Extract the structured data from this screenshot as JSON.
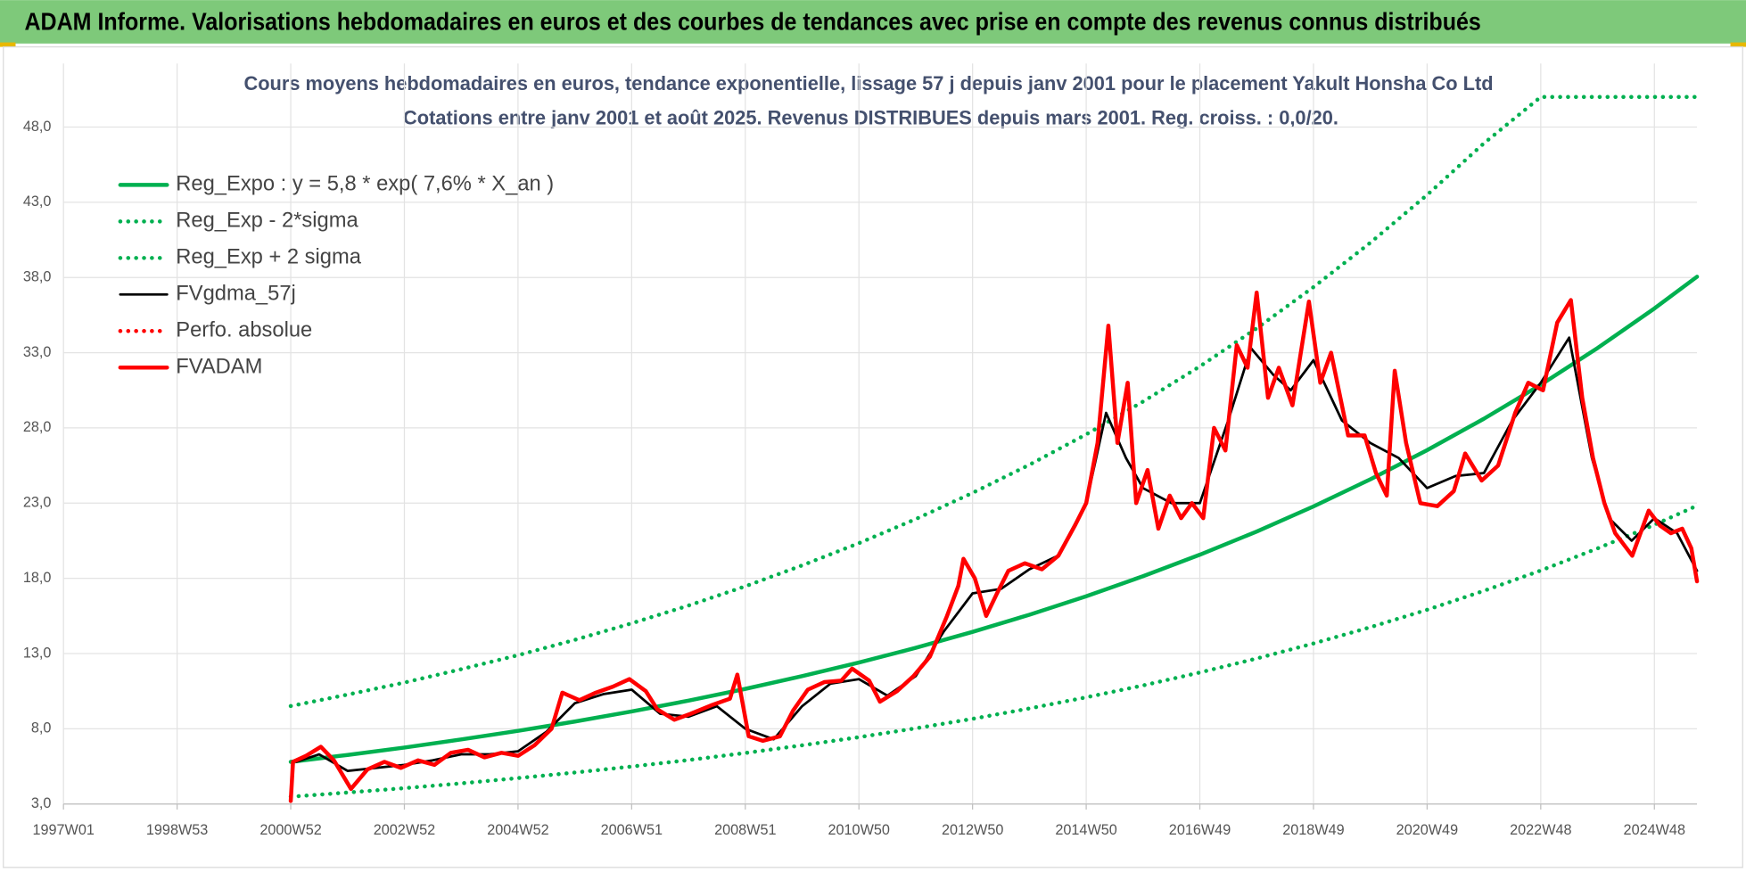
{
  "header": {
    "title": "ADAM Informe. Valorisations hebdomadaires en euros et des courbes de tendances avec prise en compte des revenus connus distribués"
  },
  "chart_data": {
    "type": "line",
    "title": "Cours moyens hebdomadaires en euros, tendance exponentielle, lissage 57 j depuis janv 2001 pour le placement Yakult Honsha Co Ltd",
    "subtitle": "Cotations entre janv 2001 et août 2025.  Revenus DISTRIBUES depuis mars 2001. Reg. croiss. : 0,0/20.",
    "xlim": [
      1997,
      2025.75
    ],
    "xticks": [
      {
        "value": 1997,
        "label": "1997W01"
      },
      {
        "value": 1999,
        "label": "1998W53"
      },
      {
        "value": 2001,
        "label": "2000W52"
      },
      {
        "value": 2003,
        "label": "2002W52"
      },
      {
        "value": 2005,
        "label": "2004W52"
      },
      {
        "value": 2007,
        "label": "2006W51"
      },
      {
        "value": 2009,
        "label": "2008W51"
      },
      {
        "value": 2011,
        "label": "2010W50"
      },
      {
        "value": 2013,
        "label": "2012W50"
      },
      {
        "value": 2015,
        "label": "2014W50"
      },
      {
        "value": 2017,
        "label": "2016W49"
      },
      {
        "value": 2019,
        "label": "2018W49"
      },
      {
        "value": 2021,
        "label": "2020W49"
      },
      {
        "value": 2023,
        "label": "2022W48"
      },
      {
        "value": 2025,
        "label": "2024W48"
      }
    ],
    "ylim": [
      3,
      50
    ],
    "yticks": [
      {
        "value": 3,
        "label": "3,0"
      },
      {
        "value": 8,
        "label": "8,0"
      },
      {
        "value": 13,
        "label": "13,0"
      },
      {
        "value": 18,
        "label": "18,0"
      },
      {
        "value": 23,
        "label": "23,0"
      },
      {
        "value": 28,
        "label": "28,0"
      },
      {
        "value": 33,
        "label": "33,0"
      },
      {
        "value": 38,
        "label": "38,0"
      },
      {
        "value": 43,
        "label": "43,0"
      },
      {
        "value": 48,
        "label": "48,0"
      }
    ],
    "grid": true,
    "legend": "upper left",
    "series": [
      {
        "name": "Reg_Expo : y = 5,8 * exp( 7,6% *  X_an )",
        "color": "#00b050",
        "style": "solid",
        "x": [
          2001,
          2002,
          2003,
          2004,
          2005,
          2006,
          2007,
          2008,
          2009,
          2010,
          2011,
          2012,
          2013,
          2014,
          2015,
          2016,
          2017,
          2018,
          2019,
          2020,
          2021,
          2022,
          2023,
          2024,
          2025,
          2025.75
        ],
        "values": [
          5.8,
          6.26,
          6.75,
          7.29,
          7.86,
          8.48,
          9.15,
          9.87,
          10.65,
          11.5,
          12.4,
          13.38,
          14.44,
          15.58,
          16.81,
          18.14,
          19.57,
          21.11,
          22.78,
          24.58,
          26.52,
          28.61,
          30.87,
          33.31,
          35.94,
          38.05
        ]
      },
      {
        "name": "Reg_Exp - 2*sigma",
        "color": "#00b050",
        "style": "dotted",
        "x": [
          2001,
          2002,
          2003,
          2004,
          2005,
          2006,
          2007,
          2008,
          2009,
          2010,
          2011,
          2012,
          2013,
          2014,
          2015,
          2016,
          2017,
          2018,
          2019,
          2020,
          2021,
          2022,
          2023,
          2024,
          2025,
          2025.75
        ],
        "values": [
          3.48,
          3.76,
          4.05,
          4.37,
          4.72,
          5.09,
          5.49,
          5.92,
          6.39,
          6.9,
          7.44,
          8.03,
          8.66,
          9.35,
          10.09,
          10.88,
          11.74,
          12.67,
          13.67,
          14.75,
          15.91,
          17.17,
          18.52,
          19.99,
          21.56,
          22.83
        ]
      },
      {
        "name": "Reg_Exp + 2 sigma",
        "color": "#00b050",
        "style": "dotted",
        "x": [
          2001,
          2002,
          2003,
          2004,
          2005,
          2006,
          2007,
          2008,
          2009,
          2010,
          2011,
          2012,
          2013,
          2014,
          2015,
          2016,
          2017,
          2018,
          2019,
          2020,
          2021,
          2022,
          2023,
          2024,
          2025,
          2025.75
        ],
        "values": [
          9.51,
          10.27,
          11.07,
          11.96,
          12.89,
          13.91,
          15.01,
          16.19,
          17.47,
          18.86,
          20.34,
          21.94,
          23.68,
          25.55,
          27.57,
          29.75,
          32.09,
          34.62,
          37.36,
          40.31,
          43.49,
          46.92,
          50,
          50,
          50,
          50
        ]
      },
      {
        "name": "FVgdma_57j",
        "color": "#000000",
        "style": "solid",
        "x": [
          2001.1,
          2001.5,
          2002.0,
          2002.5,
          2003.0,
          2003.5,
          2004.0,
          2004.5,
          2005.0,
          2005.5,
          2006.0,
          2006.5,
          2007.0,
          2007.5,
          2008.0,
          2008.5,
          2009.0,
          2009.5,
          2010.0,
          2010.5,
          2011.0,
          2011.5,
          2012.0,
          2012.5,
          2013.0,
          2013.5,
          2014.0,
          2014.5,
          2015.0,
          2015.35,
          2015.7,
          2016.0,
          2016.5,
          2017.0,
          2017.5,
          2017.9,
          2018.3,
          2018.6,
          2019.0,
          2019.5,
          2020.0,
          2020.5,
          2021.0,
          2021.5,
          2022.0,
          2022.5,
          2023.0,
          2023.5,
          2023.9,
          2024.2,
          2024.6,
          2025.0,
          2025.4,
          2025.75
        ],
        "values": [
          5.8,
          6.3,
          5.2,
          5.4,
          5.6,
          5.9,
          6.3,
          6.3,
          6.5,
          7.8,
          9.7,
          10.3,
          10.6,
          9.0,
          8.8,
          9.5,
          8.0,
          7.3,
          9.5,
          11.0,
          11.3,
          10.2,
          11.5,
          14.5,
          17.0,
          17.3,
          18.6,
          19.5,
          23.0,
          29.0,
          26.0,
          24.0,
          23.0,
          23.0,
          28.5,
          33.3,
          31.5,
          30.5,
          32.5,
          28.5,
          27.0,
          26.0,
          24.0,
          24.8,
          25.0,
          28.5,
          31.0,
          34.0,
          26.0,
          22.0,
          20.5,
          22.0,
          21.0,
          18.5
        ]
      },
      {
        "name": "Perfo. absolue",
        "color": "#ff0000",
        "style": "dotted",
        "x": [],
        "values": []
      },
      {
        "name": "FVADAM",
        "color": "#ff0000",
        "style": "solid",
        "x": [
          2001.0,
          2001.04,
          2001.27,
          2001.53,
          2001.76,
          2002.06,
          2002.35,
          2002.65,
          2002.94,
          2003.24,
          2003.53,
          2003.82,
          2004.12,
          2004.41,
          2004.71,
          2005.0,
          2005.29,
          2005.59,
          2005.78,
          2006.08,
          2006.37,
          2006.67,
          2006.96,
          2007.25,
          2007.45,
          2007.75,
          2008.04,
          2008.43,
          2008.73,
          2008.86,
          2009.06,
          2009.31,
          2009.61,
          2009.84,
          2010.1,
          2010.39,
          2010.69,
          2010.88,
          2011.18,
          2011.37,
          2011.67,
          2011.96,
          2012.25,
          2012.55,
          2012.75,
          2012.84,
          2013.04,
          2013.24,
          2013.43,
          2013.63,
          2013.92,
          2014.22,
          2014.51,
          2014.8,
          2015.0,
          2015.2,
          2015.39,
          2015.55,
          2015.73,
          2015.88,
          2016.08,
          2016.27,
          2016.47,
          2016.67,
          2016.86,
          2017.06,
          2017.25,
          2017.45,
          2017.65,
          2017.84,
          2018.0,
          2018.2,
          2018.39,
          2018.63,
          2018.92,
          2019.12,
          2019.31,
          2019.61,
          2019.9,
          2020.1,
          2020.29,
          2020.43,
          2020.63,
          2020.88,
          2021.18,
          2021.47,
          2021.67,
          2021.96,
          2022.25,
          2022.55,
          2022.78,
          2023.04,
          2023.29,
          2023.53,
          2023.73,
          2023.92,
          2024.12,
          2024.31,
          2024.61,
          2024.9,
          2025.1,
          2025.29,
          2025.49,
          2025.65,
          2025.75
        ],
        "values": [
          3.2,
          5.8,
          6.2,
          6.8,
          5.9,
          4.0,
          5.3,
          5.8,
          5.4,
          5.9,
          5.6,
          6.4,
          6.6,
          6.1,
          6.4,
          6.2,
          6.9,
          8.0,
          10.4,
          9.9,
          10.4,
          10.8,
          11.3,
          10.5,
          9.3,
          8.6,
          9.0,
          9.6,
          10.0,
          11.6,
          7.5,
          7.2,
          7.5,
          9.2,
          10.6,
          11.1,
          11.2,
          12.0,
          11.2,
          9.8,
          10.5,
          11.5,
          12.8,
          15.5,
          17.5,
          19.3,
          18.0,
          15.5,
          17.0,
          18.5,
          19.0,
          18.6,
          19.5,
          21.5,
          23.0,
          27.0,
          34.8,
          27.0,
          31.0,
          23.0,
          25.2,
          21.3,
          23.5,
          22.0,
          23.0,
          22.0,
          28.0,
          26.5,
          33.5,
          32.0,
          37.0,
          30.0,
          32.0,
          29.5,
          36.4,
          31.0,
          33.0,
          27.5,
          27.5,
          25.0,
          23.5,
          31.8,
          27.0,
          23.0,
          22.8,
          23.8,
          26.3,
          24.5,
          25.5,
          29.0,
          31.0,
          30.5,
          35.0,
          36.5,
          30.0,
          26.0,
          23.0,
          21.0,
          19.5,
          22.5,
          21.5,
          21.0,
          21.3,
          20.0,
          17.8
        ]
      }
    ]
  }
}
